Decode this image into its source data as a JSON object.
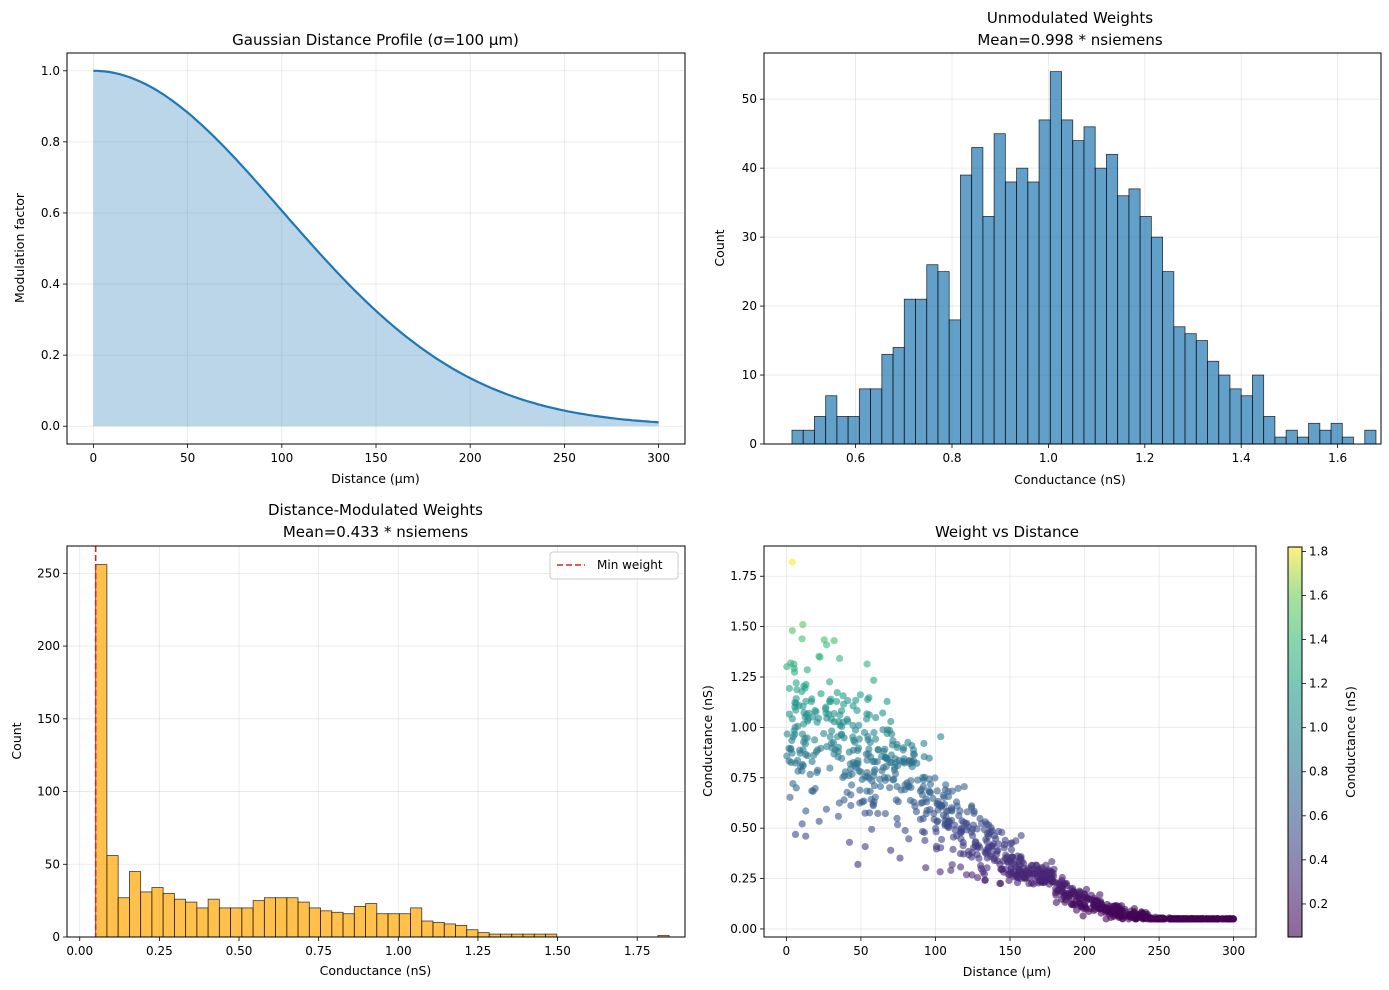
{
  "chart_data": [
    {
      "id": "p1",
      "type": "area",
      "title": "Gaussian Distance Profile (σ=100 µm)",
      "xlabel": "Distance (µm)",
      "ylabel": "Modulation factor",
      "sigma": 100,
      "x_range": [
        0,
        300
      ],
      "xlim": [
        -14,
        314
      ],
      "ylim": [
        -0.05,
        1.05
      ],
      "xticks": [
        0,
        50,
        100,
        150,
        200,
        250,
        300
      ],
      "yticks": [
        0.0,
        0.2,
        0.4,
        0.6,
        0.8,
        1.0
      ],
      "xtick_labels": [
        "0",
        "50",
        "100",
        "150",
        "200",
        "250",
        "300"
      ],
      "ytick_labels": [
        "0.0",
        "0.2",
        "0.4",
        "0.6",
        "0.8",
        "1.0"
      ],
      "line_color": "#1f77b4",
      "fill_color": "#1f77b4",
      "grid": true
    },
    {
      "id": "p2",
      "type": "bar",
      "title": "Unmodulated Weights\nMean=0.998 * nsiemens",
      "xlabel": "Conductance (nS)",
      "ylabel": "Count",
      "bin_start": 0.468,
      "bin_width": 0.0233,
      "counts": [
        2,
        2,
        4,
        7,
        4,
        4,
        8,
        8,
        13,
        14,
        21,
        21,
        26,
        25,
        18,
        39,
        43,
        33,
        45,
        38,
        40,
        38,
        47,
        54,
        47,
        44,
        46,
        40,
        42,
        36,
        37,
        33,
        30,
        25,
        17,
        16,
        15,
        12,
        10,
        8,
        7,
        10,
        4,
        1,
        2,
        1,
        3,
        2,
        3,
        1,
        0,
        2
      ],
      "xlim": [
        0.41,
        1.69
      ],
      "ylim": [
        0,
        56.7
      ],
      "xticks": [
        0.6,
        0.8,
        1.0,
        1.2,
        1.4,
        1.6
      ],
      "yticks": [
        0,
        10,
        20,
        30,
        40,
        50
      ],
      "xtick_labels": [
        "0.6",
        "0.8",
        "1.0",
        "1.2",
        "1.4",
        "1.6"
      ],
      "ytick_labels": [
        "0",
        "10",
        "20",
        "30",
        "40",
        "50"
      ],
      "bar_color": "#1f77b4",
      "grid": true
    },
    {
      "id": "p3",
      "type": "bar",
      "title": "Distance-Modulated Weights\nMean=0.433 * nsiemens",
      "xlabel": "Conductance (nS)",
      "ylabel": "Count",
      "bin_start": 0.05,
      "bin_width": 0.0353,
      "counts": [
        256,
        56,
        27,
        45,
        31,
        34,
        30,
        26,
        24,
        20,
        26,
        20,
        20,
        20,
        25,
        27,
        27,
        27,
        24,
        20,
        18,
        17,
        16,
        21,
        23,
        16,
        16,
        16,
        20,
        11,
        10,
        9,
        8,
        5,
        3,
        2,
        2,
        2,
        2,
        2,
        2,
        0,
        0,
        0,
        0,
        0,
        0,
        0,
        0,
        0,
        1
      ],
      "min_weight": 0.05,
      "min_weight_label": "Min weight",
      "legend_position": "upper right",
      "xlim": [
        -0.04,
        1.9
      ],
      "ylim": [
        0,
        268.8
      ],
      "xticks": [
        0.0,
        0.25,
        0.5,
        0.75,
        1.0,
        1.25,
        1.5,
        1.75
      ],
      "yticks": [
        0,
        50,
        100,
        150,
        200,
        250
      ],
      "xtick_labels": [
        "0.00",
        "0.25",
        "0.50",
        "0.75",
        "1.00",
        "1.25",
        "1.50",
        "1.75"
      ],
      "ytick_labels": [
        "0",
        "50",
        "100",
        "150",
        "200",
        "250"
      ],
      "bar_color": "#ffa500",
      "line_color": "#d62728",
      "grid": true
    },
    {
      "id": "p4",
      "type": "scatter",
      "title": "Weight vs Distance",
      "xlabel": "Distance (µm)",
      "ylabel": "Conductance (nS)",
      "colorbar_label": "Conductance (nS)",
      "n_points": 1000,
      "sigma": 100,
      "min_weight": 0.05,
      "distance_range": [
        0,
        300
      ],
      "highlight_points": [
        {
          "x": 4,
          "y": 1.82
        },
        {
          "x": 4,
          "y": 1.48
        },
        {
          "x": 11,
          "y": 1.51
        },
        {
          "x": 32,
          "y": 1.43
        },
        {
          "x": 27,
          "y": 1.41
        },
        {
          "x": 48,
          "y": 0.32
        },
        {
          "x": 13,
          "y": 0.46
        },
        {
          "x": 70,
          "y": 0.39
        }
      ],
      "xlim": [
        -15,
        315
      ],
      "ylim": [
        -0.04,
        1.9
      ],
      "xticks": [
        0,
        50,
        100,
        150,
        200,
        250,
        300
      ],
      "yticks": [
        0.0,
        0.25,
        0.5,
        0.75,
        1.0,
        1.25,
        1.5,
        1.75
      ],
      "xtick_labels": [
        "0",
        "50",
        "100",
        "150",
        "200",
        "250",
        "300"
      ],
      "ytick_labels": [
        "0.00",
        "0.25",
        "0.50",
        "0.75",
        "1.00",
        "1.25",
        "1.50",
        "1.75"
      ],
      "color_range": [
        0.05,
        1.82
      ],
      "colorbar_ticks": [
        0.2,
        0.4,
        0.6,
        0.8,
        1.0,
        1.2,
        1.4,
        1.6,
        1.8
      ],
      "colorbar_tick_labels": [
        "0.2",
        "0.4",
        "0.6",
        "0.8",
        "1.0",
        "1.2",
        "1.4",
        "1.6",
        "1.8"
      ],
      "colormap": "viridis",
      "grid": true
    }
  ]
}
